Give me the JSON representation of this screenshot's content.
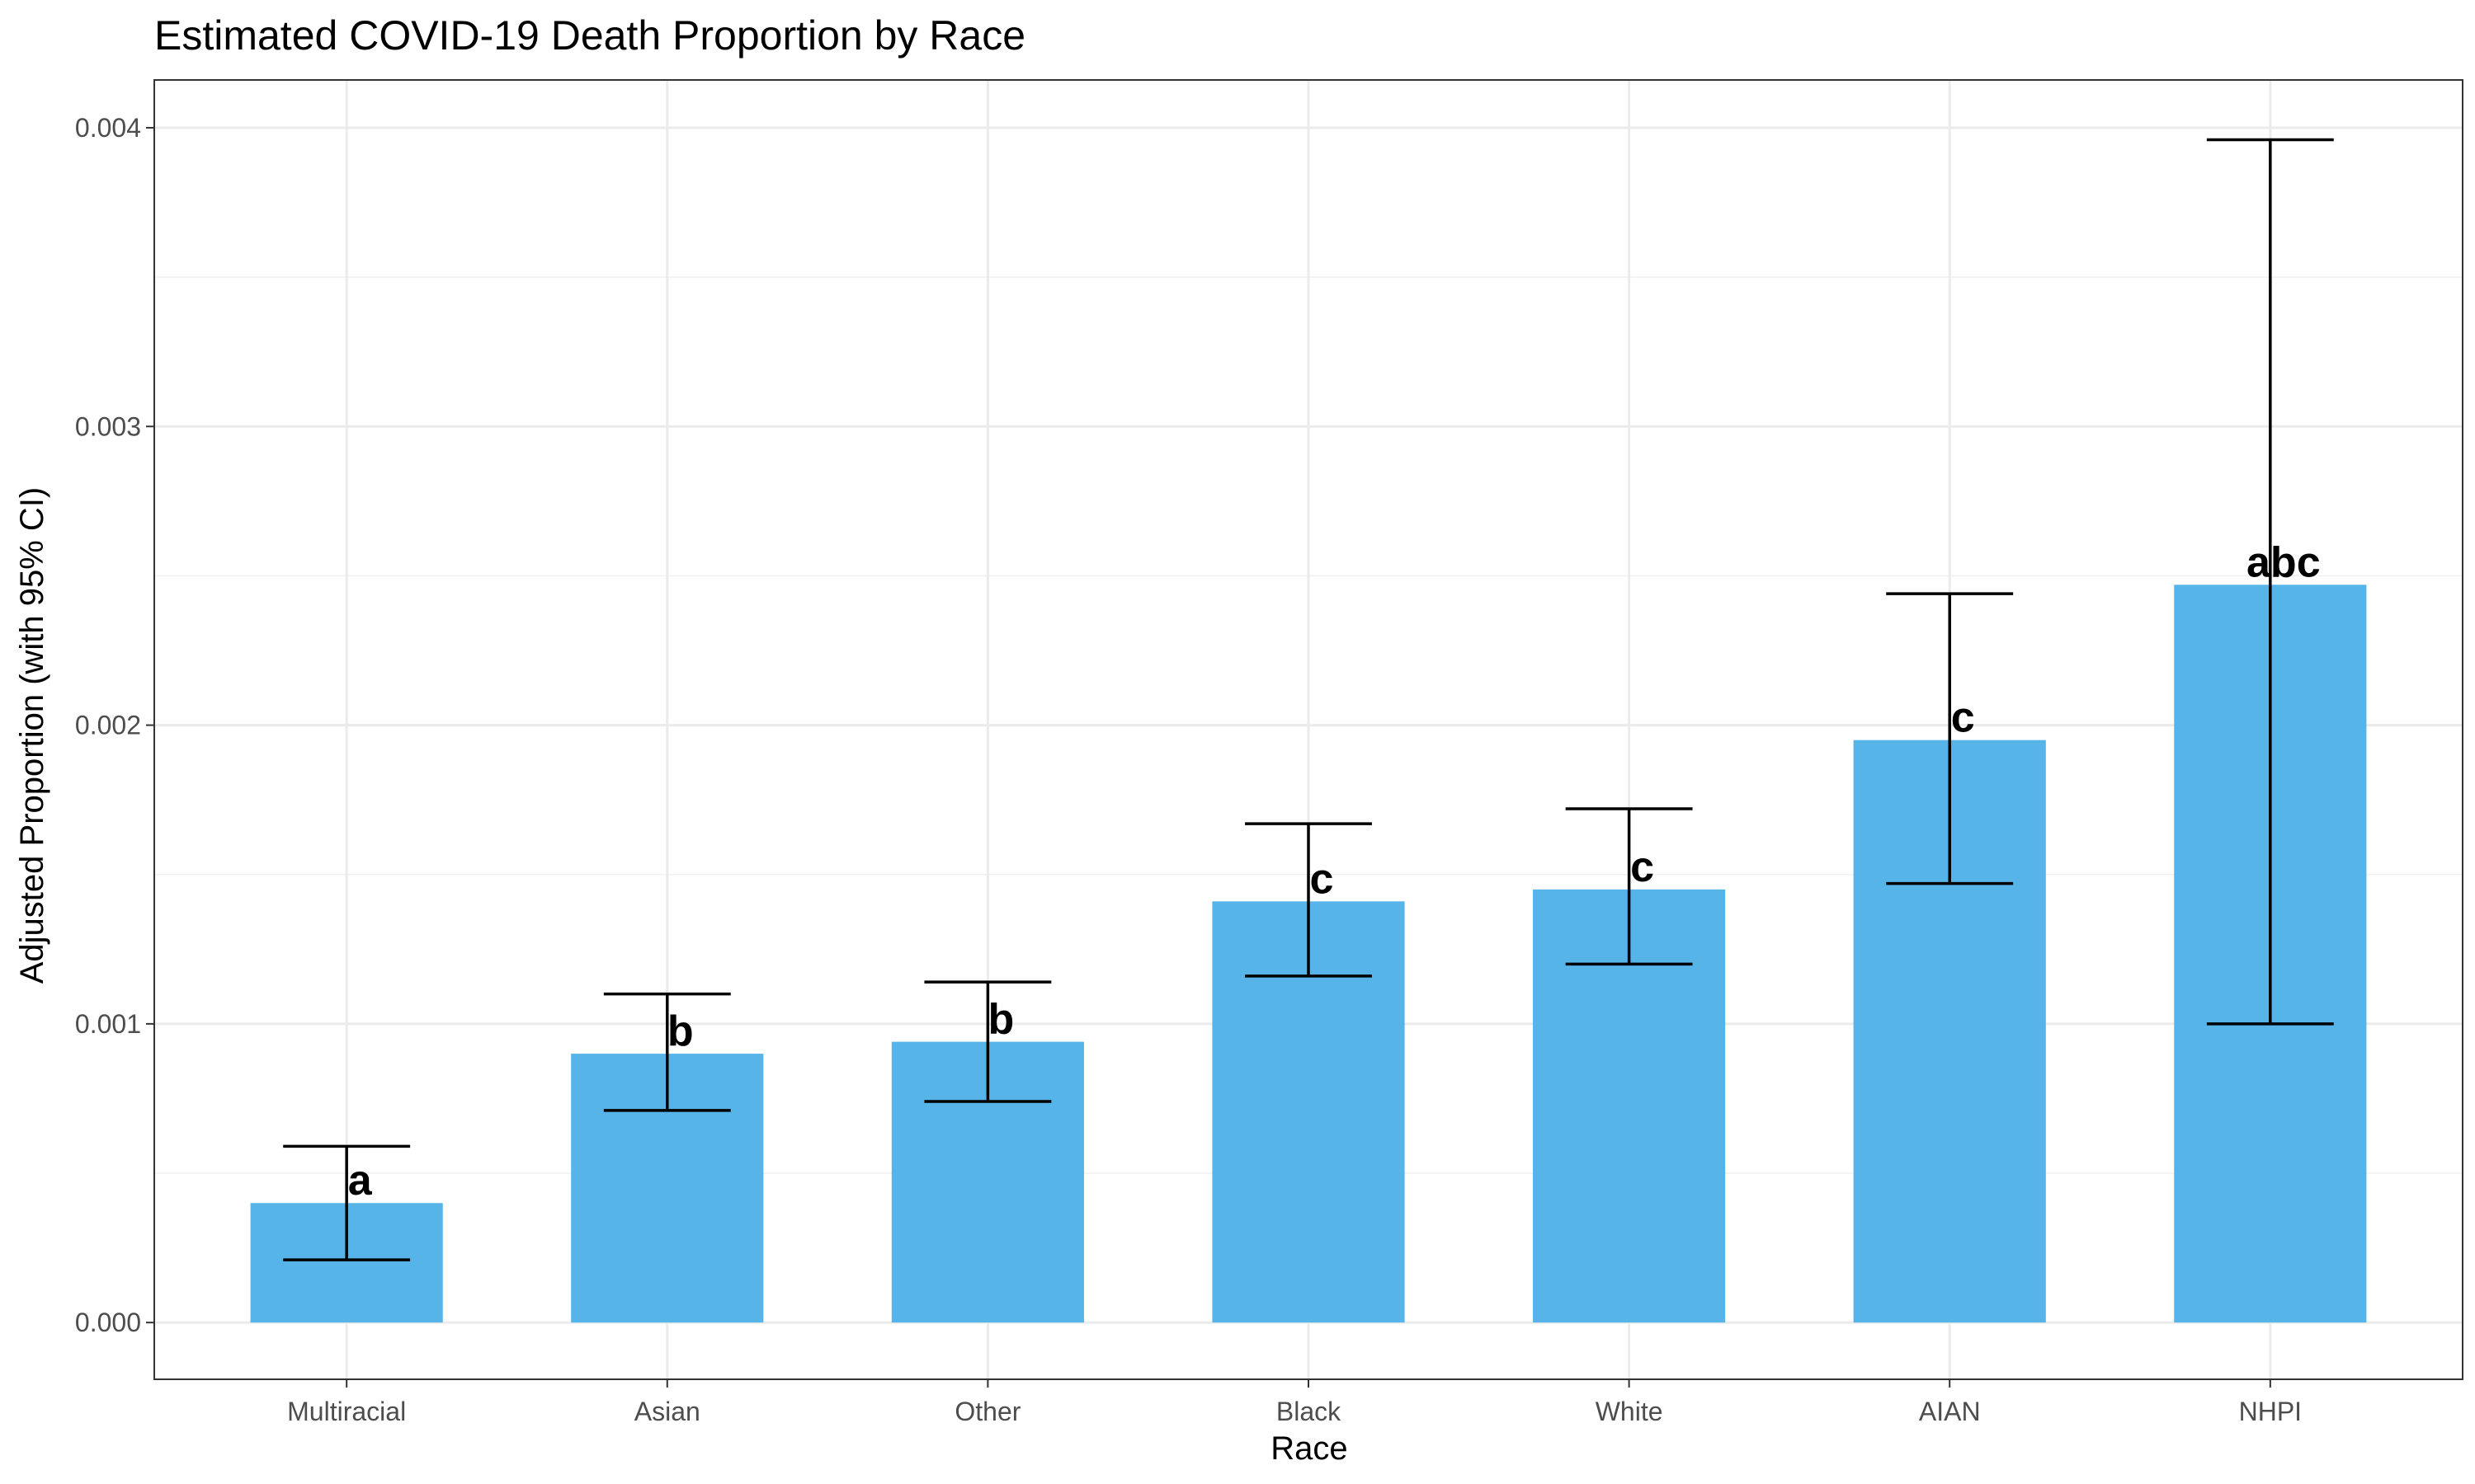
{
  "chart_data": {
    "type": "bar",
    "title": "Estimated COVID-19 Death Proportion by Race",
    "xlabel": "Race",
    "ylabel": "Adjusted Proportion (with 95% CI)",
    "categories": [
      "Multiracial",
      "Asian",
      "Other",
      "Black",
      "White",
      "AIAN",
      "NHPI"
    ],
    "values": [
      0.0004,
      0.0009,
      0.00094,
      0.00141,
      0.00145,
      0.00195,
      0.00247
    ],
    "ci_lower": [
      0.00021,
      0.00071,
      0.00074,
      0.00116,
      0.0012,
      0.00147,
      0.001
    ],
    "ci_upper": [
      0.00059,
      0.0011,
      0.00114,
      0.00167,
      0.00172,
      0.00244,
      0.00396
    ],
    "labels": [
      "a",
      "b",
      "b",
      "c",
      "c",
      "c",
      "abc"
    ],
    "ylim": [
      -0.00019,
      0.00416
    ],
    "yticks": [
      0,
      0.001,
      0.002,
      0.003,
      0.004
    ],
    "ytick_labels": [
      "0.000",
      "0.001",
      "0.002",
      "0.003",
      "0.004"
    ],
    "grid": true,
    "bar_color": "#56B4E9",
    "errorbar_color": "#000000"
  }
}
